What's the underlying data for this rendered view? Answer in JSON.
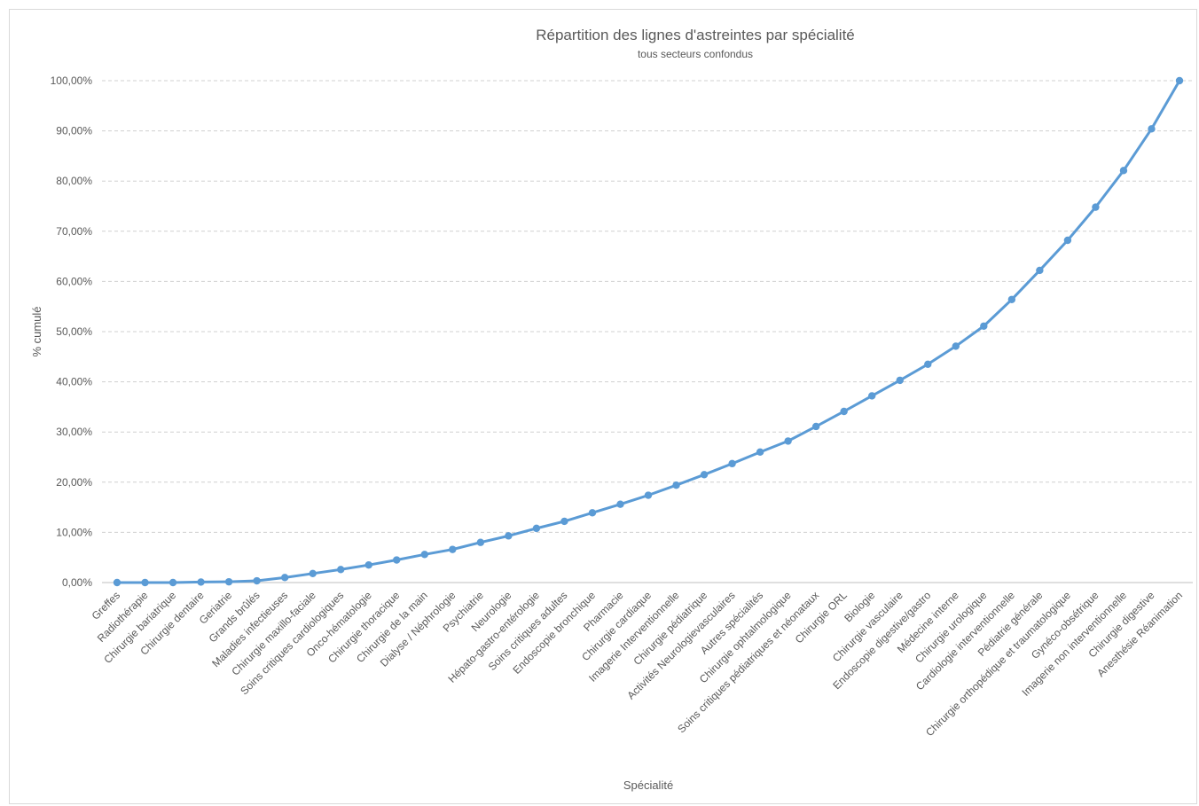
{
  "chart_data": {
    "type": "line",
    "title": "Répartition des lignes d'astreintes par spécialité",
    "subtitle": "tous secteurs confondus",
    "xlabel": "Spécialité",
    "ylabel": "% cumulé",
    "ylim": [
      0,
      100
    ],
    "yticks": [
      "0,00%",
      "10,00%",
      "20,00%",
      "30,00%",
      "40,00%",
      "50,00%",
      "60,00%",
      "70,00%",
      "80,00%",
      "90,00%",
      "100,00%"
    ],
    "grid": true,
    "legend": "none",
    "series_color": "#5b9bd5",
    "categories": [
      "Greffes",
      "Radiothérapie",
      "Chirurgie bariatrique",
      "Chirurgie dentaire",
      "Geriatrie",
      "Grands brûlés",
      "Maladies infectieuses",
      "Chirurgie maxillo-faciale",
      "Soins critiques cardiologiques",
      "Onco-hématologie",
      "Chirurgie thoracique",
      "Chirurgie de la main",
      "Dialyse / Néphrologie",
      "Psychiatrie",
      "Neurologie",
      "Hépato-gastro-entérologie",
      "Soins critiques adultes",
      "Endoscopie bronchique",
      "Pharmacie",
      "Chirurgie cardiaque",
      "Imagerie Interventionnelle",
      "Chirurgie pédiatrique",
      "Activités Neurologievasculaires",
      "Autres spécialités",
      "Chirurgie ophtalmologique",
      "Soins critiques pédiatriques et néonataux",
      "Chirurgie ORL",
      "Biologie",
      "Chirurgie vasculaire",
      "Endoscopie digestive/gastro",
      "Médecine interne",
      "Chirurgie urologique",
      "Cardiologie interventionnelle",
      "Pédiatrie générale",
      "Chirurgie orthopédique et traumatologique",
      "Gynéco-obsétrique",
      "Imagerie non interventionnelle",
      "Chirurgie digestive",
      "Anesthésie Réanimation"
    ],
    "values": [
      0.0,
      0.0,
      0.0,
      0.1,
      0.15,
      0.35,
      1.0,
      1.8,
      2.6,
      3.5,
      4.5,
      5.6,
      6.6,
      8.0,
      9.3,
      10.8,
      12.2,
      13.9,
      15.6,
      17.4,
      19.4,
      21.5,
      23.7,
      26.0,
      28.2,
      31.1,
      34.1,
      37.2,
      40.3,
      43.5,
      47.1,
      51.1,
      56.4,
      62.2,
      68.2,
      74.8,
      82.1,
      90.4,
      100.0
    ]
  }
}
